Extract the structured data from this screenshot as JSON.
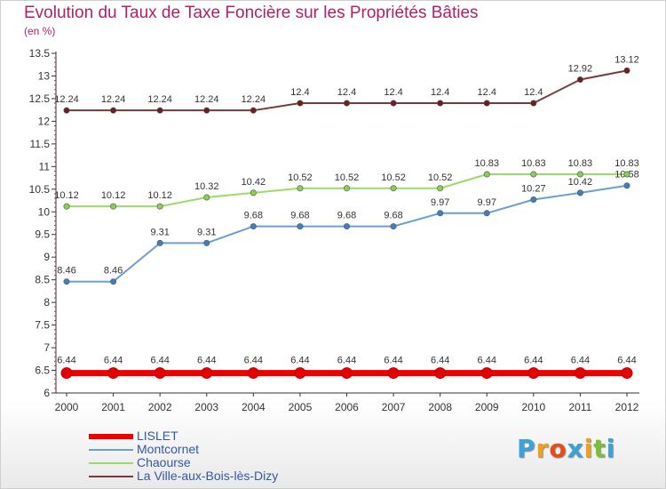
{
  "title": "Evolution du Taux de Taxe Foncière sur les Propriétés Bâties",
  "unit": "(en %)",
  "logo_letters": [
    "P",
    "r",
    "o",
    "x",
    "i",
    "t",
    "i"
  ],
  "logo_colors": [
    "#3aa3d8",
    "#f0a020",
    "#e84c1c",
    "#3aa3d8",
    "#f0a020",
    "#7cbf34",
    "#3aa3d8"
  ],
  "chart_data": {
    "type": "line",
    "title": "Evolution du Taux de Taxe Foncière sur les Propriétés Bâties",
    "ylabel": "(en %)",
    "xlabel": "",
    "ylim": [
      6,
      13.5
    ],
    "yticks": [
      "6",
      "6.5",
      "7",
      "7.5",
      "8",
      "8.5",
      "9",
      "9.5",
      "10",
      "10.5",
      "11",
      "11.5",
      "12",
      "12.5",
      "13",
      "13.5"
    ],
    "grid": false,
    "legend_position": "bottom-left",
    "x": [
      "2000",
      "2001",
      "2002",
      "2003",
      "2004",
      "2005",
      "2006",
      "2007",
      "2008",
      "2009",
      "2010",
      "2011",
      "2012"
    ],
    "series": [
      {
        "name": "LISLET",
        "color": "#ee0000",
        "point_color": "#e60000",
        "values": [
          6.44,
          6.44,
          6.44,
          6.44,
          6.44,
          6.44,
          6.44,
          6.44,
          6.44,
          6.44,
          6.44,
          6.44,
          6.44
        ],
        "labels": [
          "6.44",
          "6.44",
          "6.44",
          "6.44",
          "6.44",
          "6.44",
          "6.44",
          "6.44",
          "6.44",
          "6.44",
          "6.44",
          "6.44",
          "6.44"
        ]
      },
      {
        "name": "Montcornet",
        "color": "#6a9fd0",
        "point_color": "#3f7fbf",
        "values": [
          8.46,
          8.46,
          9.31,
          9.31,
          9.68,
          9.68,
          9.68,
          9.68,
          9.97,
          9.97,
          10.27,
          10.42,
          10.58
        ],
        "labels": [
          "8.46",
          "8.46",
          "9.31",
          "9.31",
          "9.68",
          "9.68",
          "9.68",
          "9.68",
          "9.97",
          "9.97",
          "10.27",
          "10.42",
          "10.58"
        ]
      },
      {
        "name": "Chaourse",
        "color": "#99dd66",
        "point_color": "#88d055",
        "values": [
          10.12,
          10.12,
          10.12,
          10.32,
          10.42,
          10.52,
          10.52,
          10.52,
          10.52,
          10.83,
          10.83,
          10.83,
          10.83
        ],
        "labels": [
          "10.12",
          "10.12",
          "10.12",
          "10.32",
          "10.42",
          "10.52",
          "10.52",
          "10.52",
          "10.52",
          "10.83",
          "10.83",
          "10.83",
          "10.83"
        ]
      },
      {
        "name": "La Ville-aux-Bois-lès-Dizy",
        "color": "#7a3a3a",
        "point_color": "#6a2020",
        "values": [
          12.24,
          12.24,
          12.24,
          12.24,
          12.24,
          12.4,
          12.4,
          12.4,
          12.4,
          12.4,
          12.4,
          12.92,
          13.12
        ],
        "labels": [
          "12.24",
          "12.24",
          "12.24",
          "12.24",
          "12.24",
          "12.4",
          "12.4",
          "12.4",
          "12.4",
          "12.4",
          "12.4",
          "12.92",
          "13.12"
        ]
      }
    ]
  }
}
